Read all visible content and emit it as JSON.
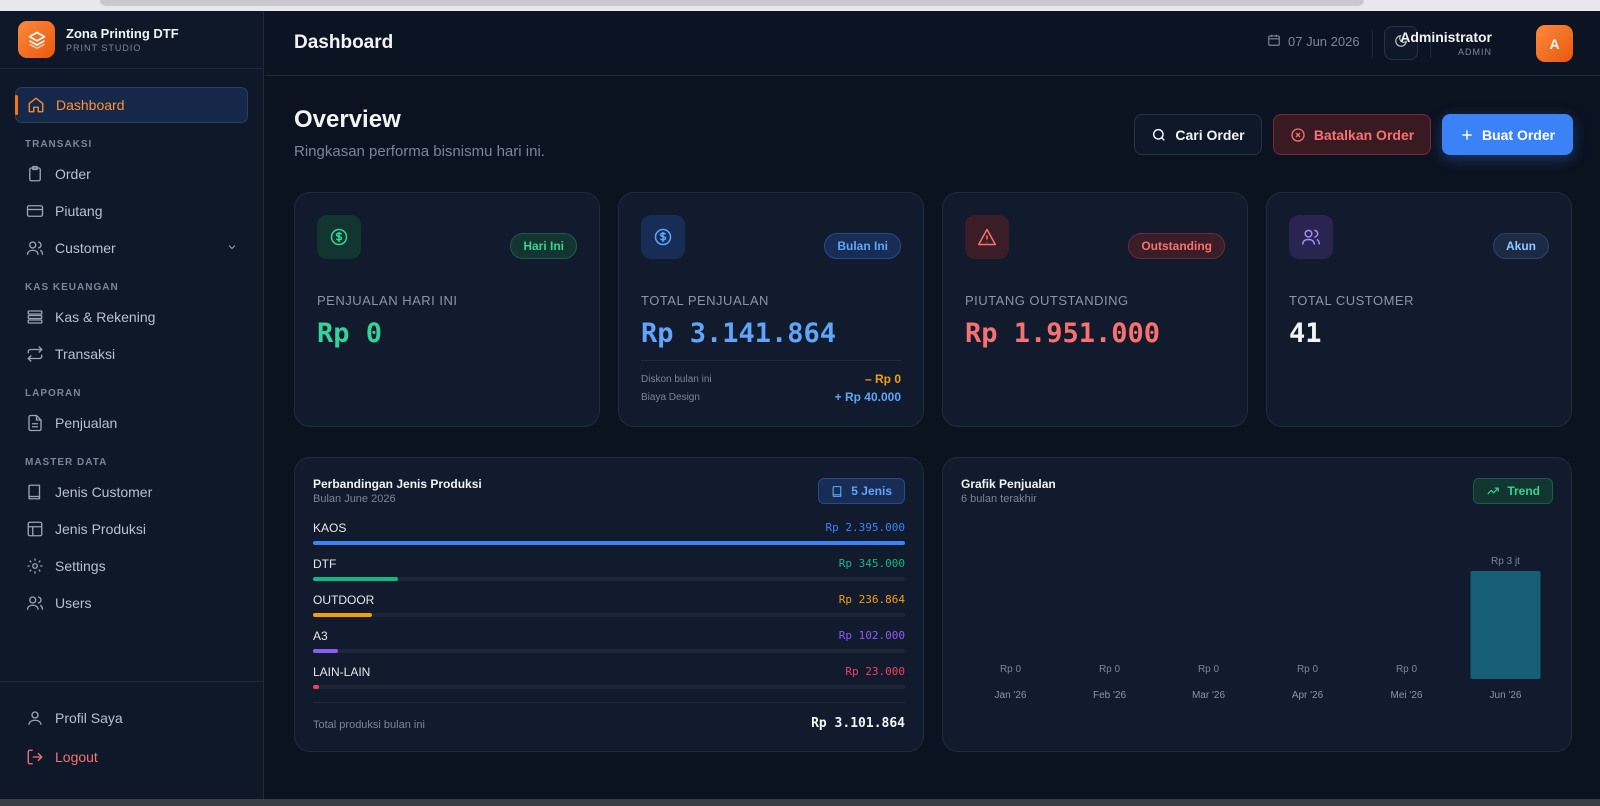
{
  "brand": {
    "name": "Zona Printing DTF",
    "subtitle": "PRINT STUDIO"
  },
  "sidebar": {
    "dashboard": "Dashboard",
    "sections": {
      "transaksi": "TRANSAKSI",
      "kas": "KAS KEUANGAN",
      "laporan": "LAPORAN",
      "master": "MASTER DATA"
    },
    "items": {
      "order": "Order",
      "piutang": "Piutang",
      "customer": "Customer",
      "kas_rekening": "Kas & Rekening",
      "transaksi": "Transaksi",
      "penjualan": "Penjualan",
      "jenis_customer": "Jenis Customer",
      "jenis_produksi": "Jenis Produksi",
      "settings": "Settings",
      "users": "Users"
    },
    "bottom": {
      "profil": "Profil Saya",
      "logout": "Logout"
    }
  },
  "header": {
    "title": "Dashboard",
    "date": "07 Jun 2026",
    "user_name": "Administrator",
    "user_role": "ADMIN",
    "avatar_letter": "A"
  },
  "overview": {
    "title": "Overview",
    "subtitle": "Ringkasan performa bisnismu hari ini.",
    "buttons": {
      "search": "Cari Order",
      "cancel": "Batalkan Order",
      "create": "Buat Order"
    }
  },
  "stats": {
    "today": {
      "badge": "Hari Ini",
      "label": "PENJUALAN HARI INI",
      "value": "Rp 0"
    },
    "total": {
      "badge": "Bulan Ini",
      "label": "TOTAL PENJUALAN",
      "value": "Rp 3.141.864",
      "discount_label": "Diskon bulan ini",
      "discount_value": "– Rp 0",
      "design_label": "Biaya Design",
      "design_value": "+ Rp 40.000"
    },
    "receivable": {
      "badge": "Outstanding",
      "label": "PIUTANG OUTSTANDING",
      "value": "Rp 1.951.000"
    },
    "customers": {
      "badge": "Akun",
      "label": "TOTAL CUSTOMER",
      "value": "41"
    }
  },
  "products": {
    "title": "Perbandingan Jenis Produksi",
    "subtitle": "Bulan June 2026",
    "chip": "5 Jenis",
    "items": [
      {
        "name": "KAOS",
        "value": "Rp 2.395.000",
        "amount": 2395000,
        "color": "#3b82f6"
      },
      {
        "name": "DTF",
        "value": "Rp 345.000",
        "amount": 345000,
        "color": "#10b981"
      },
      {
        "name": "OUTDOOR",
        "value": "Rp 236.864",
        "amount": 236864,
        "color": "#f59e0b"
      },
      {
        "name": "A3",
        "value": "Rp 102.000",
        "amount": 102000,
        "color": "#8b5cf6"
      },
      {
        "name": "LAIN-LAIN",
        "value": "Rp 23.000",
        "amount": 23000,
        "color": "#f43f5e"
      }
    ],
    "total_label": "Total produksi bulan ini",
    "total_value": "Rp 3.101.864"
  },
  "sales_chart": {
    "title": "Grafik Penjualan",
    "subtitle": "6 bulan terakhir",
    "chip": "Trend"
  },
  "chart_data": {
    "type": "bar",
    "categories": [
      "Jan '26",
      "Feb '26",
      "Mar '26",
      "Apr '26",
      "Mei '26",
      "Jun '26"
    ],
    "values": [
      0,
      0,
      0,
      0,
      0,
      3141864
    ],
    "data_labels": [
      "Rp 0",
      "Rp 0",
      "Rp 0",
      "Rp 0",
      "Rp 0",
      "Rp 3 jt"
    ],
    "title": "Grafik Penjualan",
    "xlabel": "",
    "ylabel": "",
    "bar_color": "#155e75",
    "grid": false
  }
}
